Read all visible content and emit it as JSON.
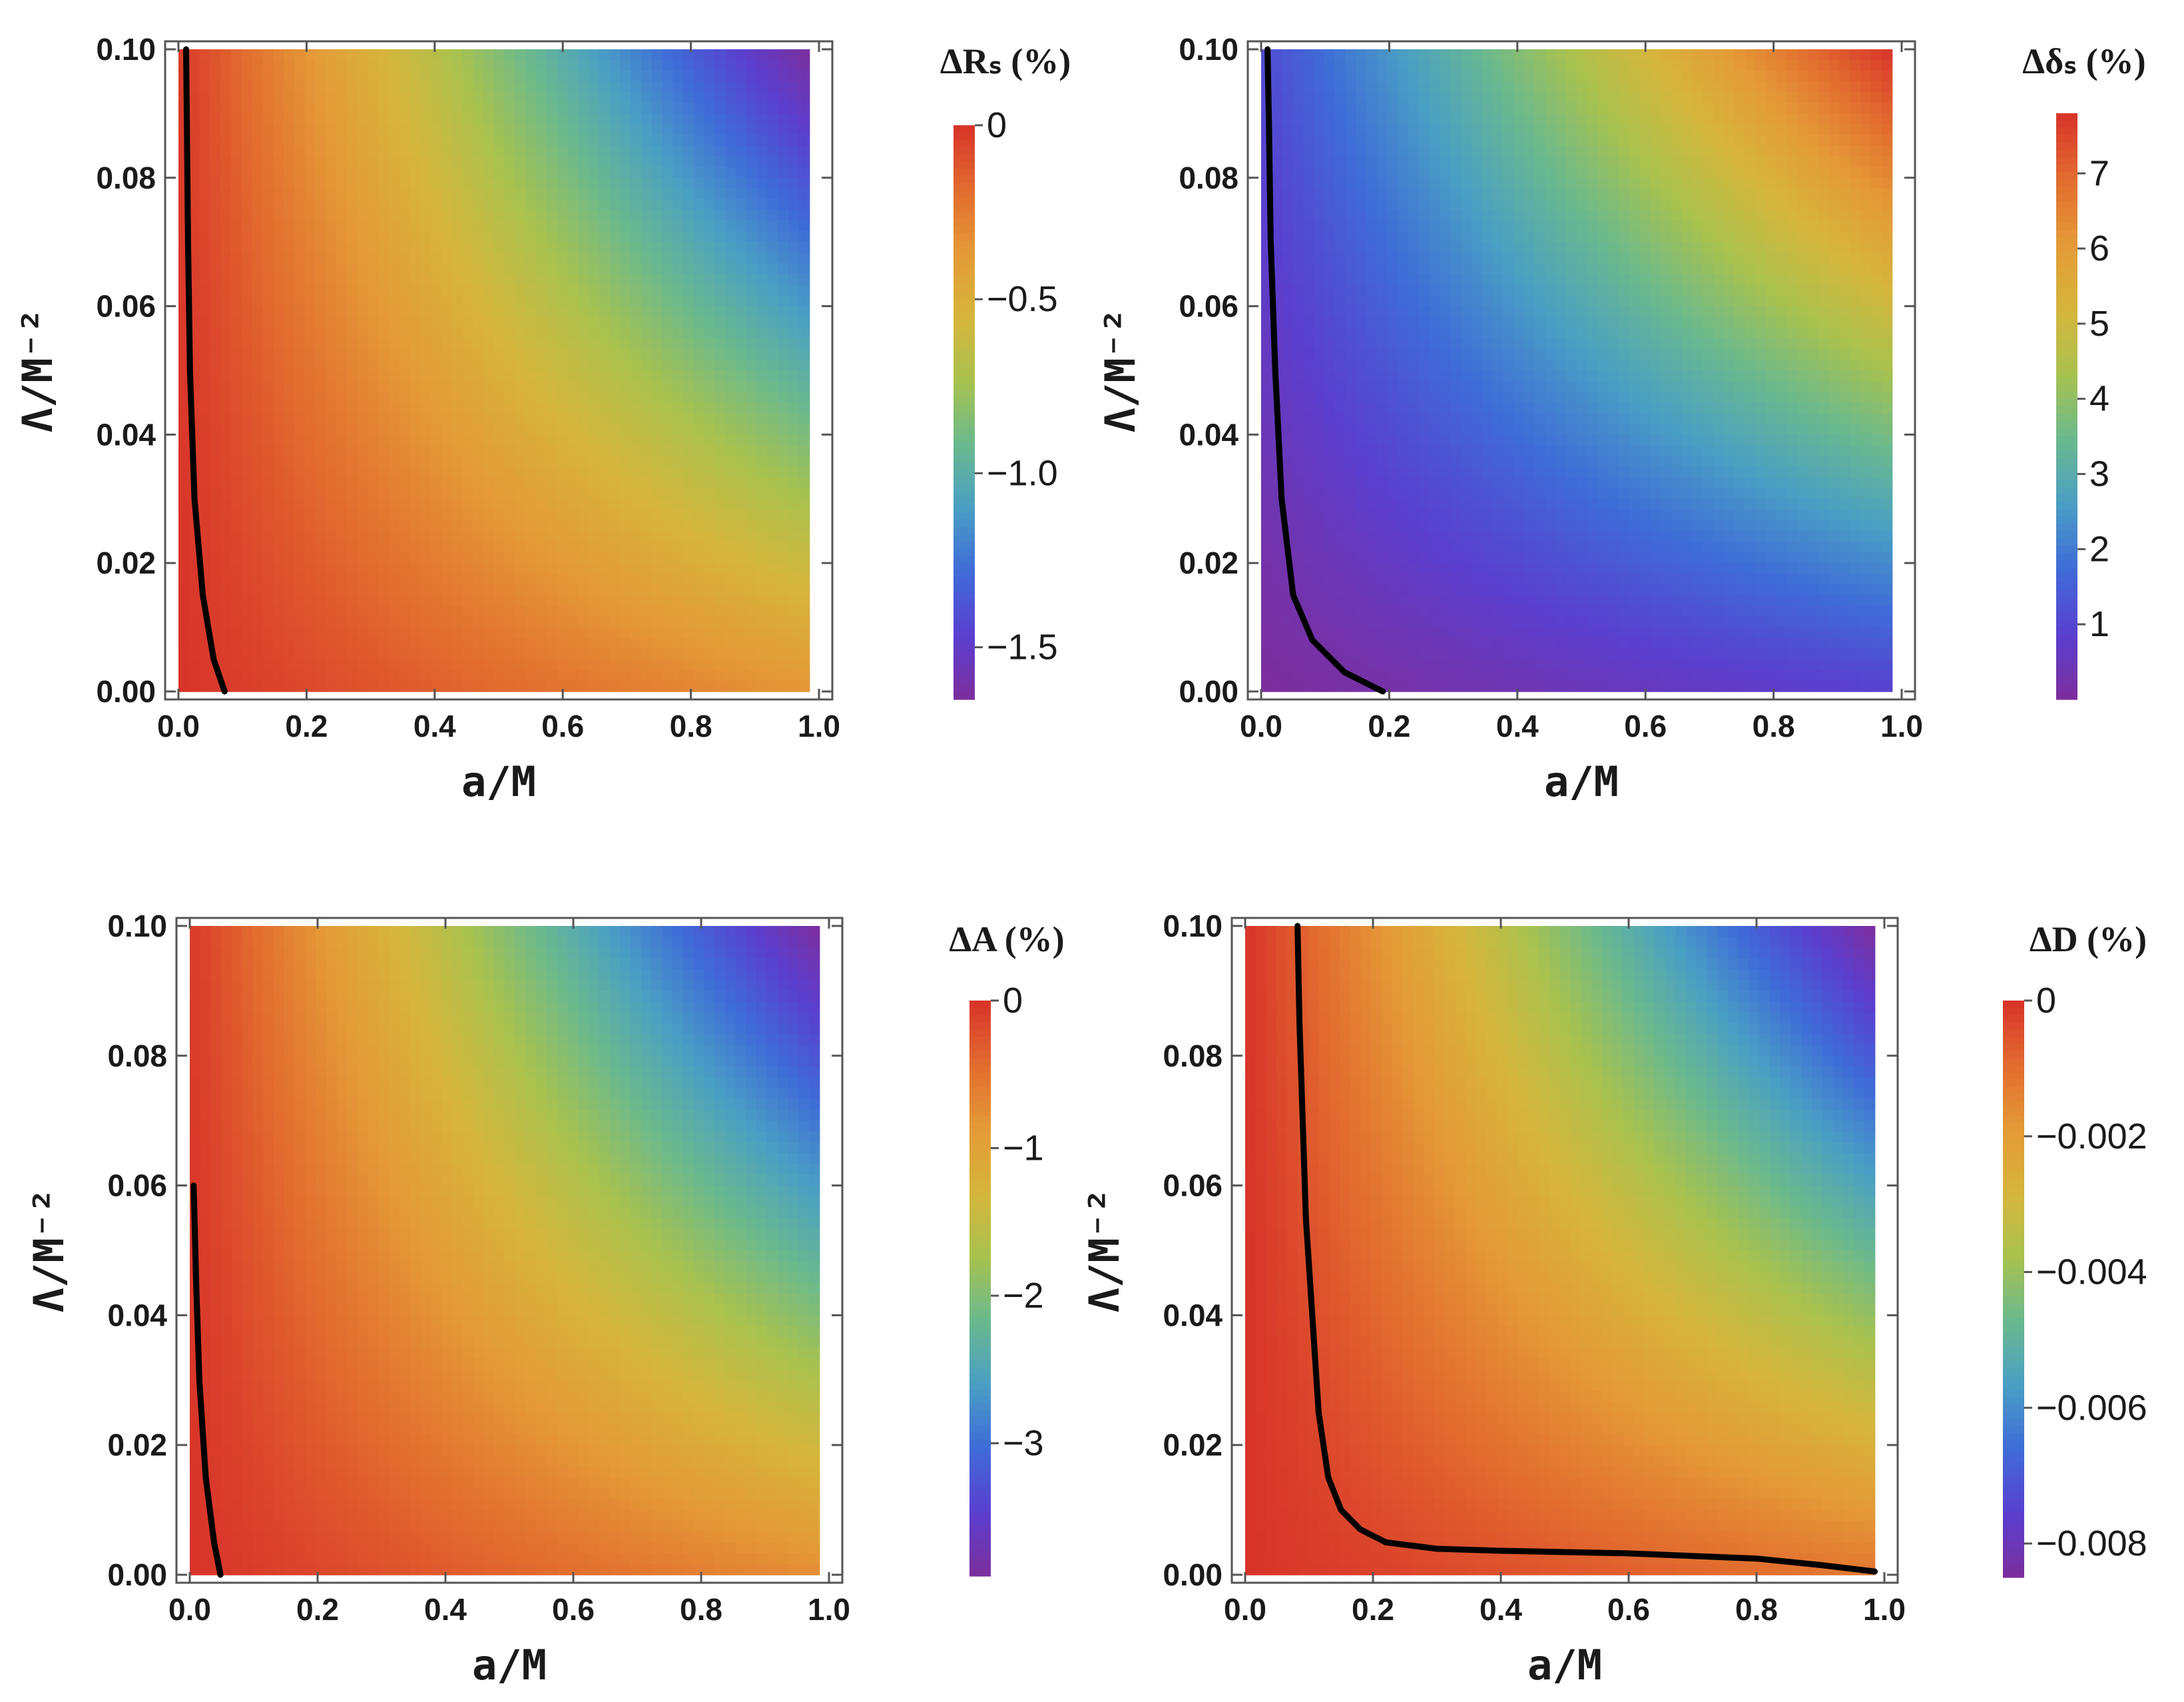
{
  "colors": {
    "scale": [
      "#7d2e9c",
      "#5a3fcf",
      "#3f6bd8",
      "#4a9fc4",
      "#6ab98e",
      "#a9c24e",
      "#d6b53c",
      "#e49a37",
      "#e26b2f",
      "#d8332a"
    ],
    "curve": "#000000"
  },
  "chart_data": [
    {
      "type": "heatmap",
      "xlabel": "a/M",
      "ylabel": "Λ/M⁻²",
      "xlim": [
        0.0,
        1.0
      ],
      "ylim": [
        0.0,
        0.1
      ],
      "x_ticks": [
        "0.0",
        "0.2",
        "0.4",
        "0.6",
        "0.8",
        "1.0"
      ],
      "y_ticks": [
        "0.00",
        "0.02",
        "0.04",
        "0.06",
        "0.08",
        "0.10"
      ],
      "grid": false,
      "colorbar": {
        "title": "ΔRₛ (%)",
        "range": [
          -1.65,
          0
        ],
        "ticks": [
          {
            "value": 0,
            "label": "0"
          },
          {
            "value": -0.5,
            "label": "−0.5"
          },
          {
            "value": -1.0,
            "label": "−1.0"
          },
          {
            "value": -1.5,
            "label": "−1.5"
          }
        ]
      },
      "data_extent": {
        "x": [
          0.0,
          0.985
        ],
        "y": [
          0.0,
          0.1
        ]
      },
      "field_corner_values": {
        "x0_y0": 0.0,
        "x1_y0": -0.35,
        "x0_y1": -0.02,
        "x1_y1": -1.65
      },
      "contour": {
        "x": [
          0.072,
          0.055,
          0.038,
          0.025,
          0.018,
          0.015,
          0.013,
          0.012
        ],
        "y": [
          0.0,
          0.005,
          0.015,
          0.03,
          0.05,
          0.07,
          0.09,
          0.1
        ]
      }
    },
    {
      "type": "heatmap",
      "xlabel": "a/M",
      "ylabel": "Λ/M⁻²",
      "xlim": [
        0.0,
        1.0
      ],
      "ylim": [
        0.0,
        0.1
      ],
      "x_ticks": [
        "0.0",
        "0.2",
        "0.4",
        "0.6",
        "0.8",
        "1.0"
      ],
      "y_ticks": [
        "0.00",
        "0.02",
        "0.04",
        "0.06",
        "0.08",
        "0.10"
      ],
      "grid": false,
      "colorbar": {
        "title": "Δδₛ (%)",
        "range": [
          0,
          7.8
        ],
        "ticks": [
          {
            "value": 1,
            "label": "1"
          },
          {
            "value": 2,
            "label": "2"
          },
          {
            "value": 3,
            "label": "3"
          },
          {
            "value": 4,
            "label": "4"
          },
          {
            "value": 5,
            "label": "5"
          },
          {
            "value": 6,
            "label": "6"
          },
          {
            "value": 7,
            "label": "7"
          }
        ]
      },
      "data_extent": {
        "x": [
          0.0,
          0.985
        ],
        "y": [
          0.0,
          0.1
        ]
      },
      "field_corner_values": {
        "x0_y0": 0.0,
        "x1_y0": 0.9,
        "x0_y1": 1.1,
        "x1_y1": 7.8
      },
      "contour": {
        "x": [
          0.19,
          0.13,
          0.08,
          0.05,
          0.032,
          0.022,
          0.015,
          0.012,
          0.01
        ],
        "y": [
          0.0,
          0.003,
          0.008,
          0.015,
          0.03,
          0.05,
          0.07,
          0.09,
          0.1
        ]
      }
    },
    {
      "type": "heatmap",
      "xlabel": "a/M",
      "ylabel": "Λ/M⁻²",
      "xlim": [
        0.0,
        1.0
      ],
      "ylim": [
        0.0,
        0.1
      ],
      "x_ticks": [
        "0.0",
        "0.2",
        "0.4",
        "0.6",
        "0.8",
        "1.0"
      ],
      "y_ticks": [
        "0.00",
        "0.02",
        "0.04",
        "0.06",
        "0.08",
        "0.10"
      ],
      "grid": false,
      "colorbar": {
        "title": "ΔA (%)",
        "range": [
          -3.9,
          0
        ],
        "ticks": [
          {
            "value": 0,
            "label": "0"
          },
          {
            "value": -1,
            "label": "−1"
          },
          {
            "value": -2,
            "label": "−2"
          },
          {
            "value": -3,
            "label": "−3"
          }
        ]
      },
      "data_extent": {
        "x": [
          0.0,
          0.985
        ],
        "y": [
          0.0,
          0.1
        ]
      },
      "field_corner_values": {
        "x0_y0": 0.0,
        "x1_y0": -0.75,
        "x0_y1": -0.05,
        "x1_y1": -3.9
      },
      "contour": {
        "x": [
          0.048,
          0.038,
          0.025,
          0.015,
          0.01,
          0.006
        ],
        "y": [
          0.0,
          0.005,
          0.015,
          0.03,
          0.045,
          0.06
        ]
      }
    },
    {
      "type": "heatmap",
      "xlabel": "a/M",
      "ylabel": "Λ/M⁻²",
      "xlim": [
        0.0,
        1.0
      ],
      "ylim": [
        0.0,
        0.1
      ],
      "x_ticks": [
        "0.0",
        "0.2",
        "0.4",
        "0.6",
        "0.8",
        "1.0"
      ],
      "y_ticks": [
        "0.00",
        "0.02",
        "0.04",
        "0.06",
        "0.08",
        "0.10"
      ],
      "grid": false,
      "colorbar": {
        "title": "ΔD (%)",
        "range": [
          -0.0085,
          0
        ],
        "ticks": [
          {
            "value": 0,
            "label": "0"
          },
          {
            "value": -0.002,
            "label": "−0.002"
          },
          {
            "value": -0.004,
            "label": "−0.004"
          },
          {
            "value": -0.006,
            "label": "−0.006"
          },
          {
            "value": -0.008,
            "label": "−0.008"
          }
        ]
      },
      "data_extent": {
        "x": [
          0.0,
          0.985
        ],
        "y": [
          0.0,
          0.1
        ]
      },
      "field_corner_values": {
        "x0_y0": 0.0,
        "x1_y0": -0.0012,
        "x0_y1": 0.0,
        "x1_y1": -0.0085
      },
      "contour": {
        "x": [
          0.985,
          0.9,
          0.8,
          0.6,
          0.4,
          0.3,
          0.22,
          0.18,
          0.15,
          0.13,
          0.115,
          0.105,
          0.095,
          0.09,
          0.085,
          0.082
        ],
        "y": [
          0.0005,
          0.0015,
          0.0025,
          0.0033,
          0.0037,
          0.004,
          0.005,
          0.007,
          0.01,
          0.015,
          0.025,
          0.04,
          0.055,
          0.07,
          0.085,
          0.1
        ]
      }
    }
  ]
}
